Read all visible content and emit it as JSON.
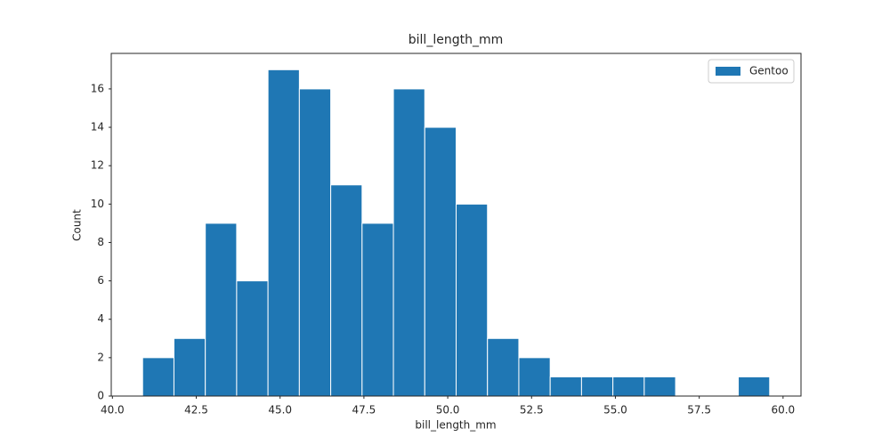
{
  "chart_data": {
    "type": "histogram",
    "title": "bill_length_mm",
    "xlabel": "bill_length_mm",
    "ylabel": "Count",
    "bins": [
      40.9,
      41.835,
      42.77,
      43.705,
      44.64,
      45.575,
      46.51,
      47.445,
      48.38,
      49.315,
      50.25,
      51.185,
      52.12,
      53.055,
      53.99,
      54.925,
      55.86,
      56.795,
      57.73,
      58.665,
      59.6
    ],
    "series": [
      {
        "name": "Gentoo",
        "color": "#1f77b4",
        "values": [
          2,
          3,
          9,
          6,
          17,
          16,
          11,
          9,
          16,
          14,
          10,
          3,
          2,
          1,
          1,
          1,
          1,
          0,
          0,
          1
        ]
      }
    ],
    "xlim": [
      39.965,
      60.535
    ],
    "ylim": [
      0,
      17.85
    ],
    "xticks": [
      {
        "value": 40,
        "label": "40.0"
      },
      {
        "value": 42.5,
        "label": "42.5"
      },
      {
        "value": 45,
        "label": "45.0"
      },
      {
        "value": 47.5,
        "label": "47.5"
      },
      {
        "value": 50,
        "label": "50.0"
      },
      {
        "value": 52.5,
        "label": "52.5"
      },
      {
        "value": 55,
        "label": "55.0"
      },
      {
        "value": 57.5,
        "label": "57.5"
      },
      {
        "value": 60,
        "label": "60.0"
      }
    ],
    "yticks": [
      0,
      2,
      4,
      6,
      8,
      10,
      12,
      14,
      16
    ],
    "legend": "upper right"
  }
}
